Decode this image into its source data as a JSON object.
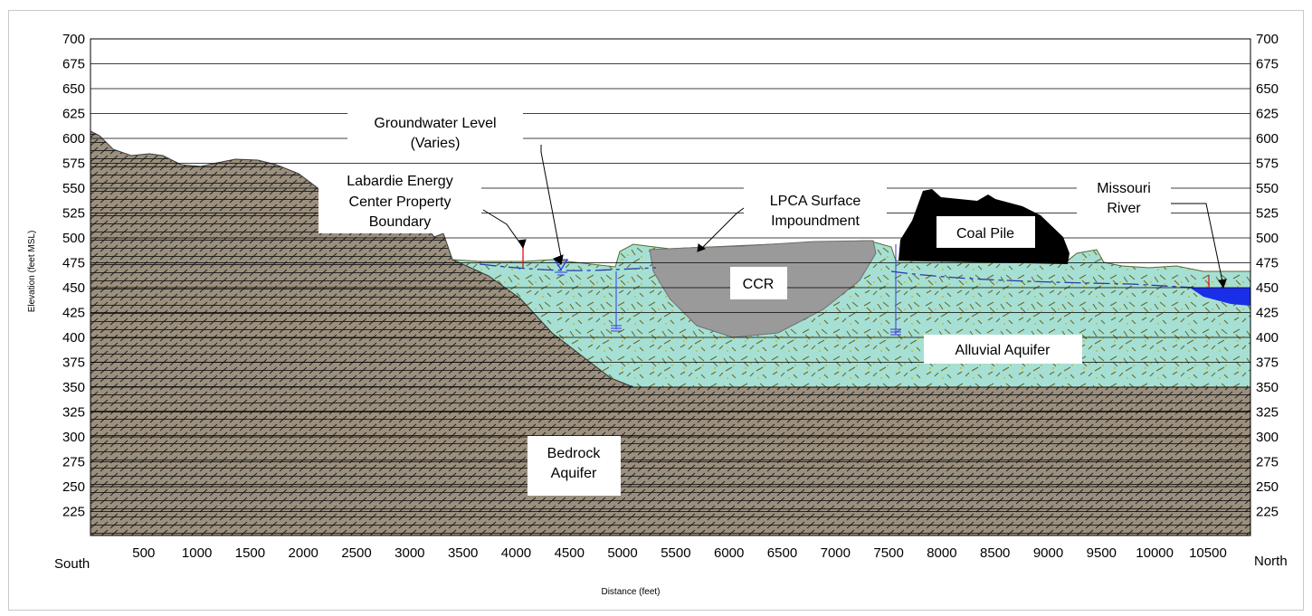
{
  "axes": {
    "y_label": "Elevation (feet MSL)",
    "x_label": "Distance (feet)",
    "x_left_label": "South",
    "x_right_label": "North",
    "y_ticks": [
      "700",
      "675",
      "650",
      "625",
      "600",
      "575",
      "550",
      "525",
      "500",
      "475",
      "450",
      "425",
      "400",
      "375",
      "350",
      "325",
      "300",
      "275",
      "250",
      "225"
    ],
    "x_ticks": [
      "500",
      "1000",
      "1500",
      "2000",
      "2500",
      "3000",
      "3500",
      "4000",
      "4500",
      "5000",
      "5500",
      "6000",
      "6500",
      "7000",
      "7500",
      "8000",
      "8500",
      "9000",
      "9500",
      "10000",
      "10500"
    ]
  },
  "labels": {
    "groundwater_1": "Groundwater Level",
    "groundwater_2": "(Varies)",
    "boundary_1": "Labardie Energy",
    "boundary_2": "Center Property",
    "boundary_3": "Boundary",
    "impoundment_1": "LPCA Surface",
    "impoundment_2": "Impoundment",
    "missouri_1": "Missouri",
    "missouri_2": "River",
    "coal_pile": "Coal Pile",
    "ccr": "CCR",
    "alluvial": "Alluvial Aquifer",
    "bedrock_1": "Bedrock",
    "bedrock_2": "Aquifer"
  },
  "colors": {
    "bedrock": "#9b8f7d",
    "alluvial": "#a6e0d4",
    "ccr": "#9a9a9a",
    "coal": "#000000",
    "river": "#1a2ee8"
  }
}
